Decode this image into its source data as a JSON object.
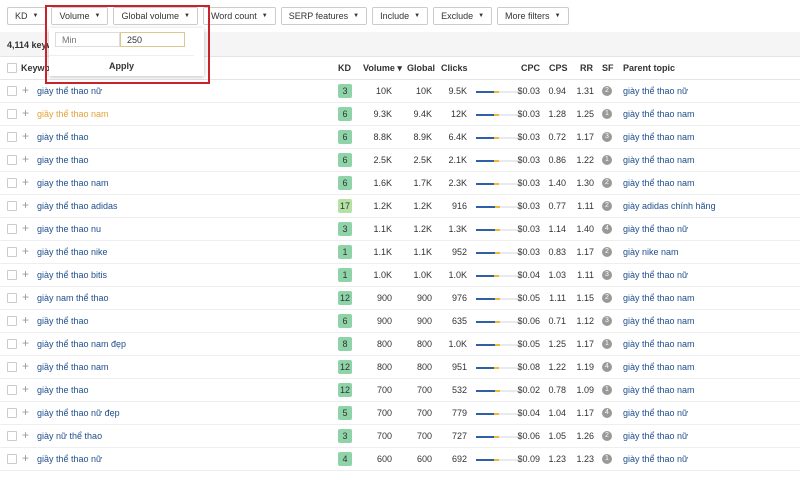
{
  "filters": [
    "KD",
    "Volume",
    "Global volume",
    "Word count",
    "SERP features",
    "Include",
    "Exclude",
    "More filters"
  ],
  "count": "4,114 keywords",
  "popup": {
    "min_placeholder": "Min",
    "value": "250",
    "apply": "Apply"
  },
  "columns": {
    "keyword": "Keyword",
    "kd": "KD",
    "volume": "Volume ▾",
    "global": "Global",
    "clicks": "Clicks",
    "cpc": "CPC",
    "cps": "CPS",
    "rr": "RR",
    "sf": "SF",
    "parent": "Parent topic"
  },
  "colors": {
    "highlight": "#c8222a",
    "link": "#1f4e8c",
    "hover": "#e4a23a",
    "kd_green": "#8fd3a8",
    "kd_light": "#b5e2a4"
  },
  "rows": [
    {
      "kw": "giày thể thao nữ",
      "kd": "3",
      "vol": "10K",
      "global": "10K",
      "clicks": "9.5K",
      "paid": 0.1,
      "cpc": "$0.03",
      "cps": "0.94",
      "rr": "1.31",
      "sf": "2",
      "parent": "giày thể thao nữ"
    },
    {
      "kw": "giầy thể thao nam",
      "kd": "6",
      "vol": "9.3K",
      "global": "9.4K",
      "clicks": "12K",
      "paid": 0.1,
      "cpc": "$0.03",
      "cps": "1.28",
      "rr": "1.25",
      "sf": "1",
      "parent": "giày thể thao nam",
      "hover": true
    },
    {
      "kw": "giày thể thao",
      "kd": "6",
      "vol": "8.8K",
      "global": "8.9K",
      "clicks": "6.4K",
      "paid": 0.1,
      "cpc": "$0.03",
      "cps": "0.72",
      "rr": "1.17",
      "sf": "3",
      "parent": "giày thể thao nam"
    },
    {
      "kw": "giay the thao",
      "kd": "6",
      "vol": "2.5K",
      "global": "2.5K",
      "clicks": "2.1K",
      "paid": 0.1,
      "cpc": "$0.03",
      "cps": "0.86",
      "rr": "1.22",
      "sf": "1",
      "parent": "giày thể thao nam"
    },
    {
      "kw": "giay the thao nam",
      "kd": "6",
      "vol": "1.6K",
      "global": "1.7K",
      "clicks": "2.3K",
      "paid": 0.1,
      "cpc": "$0.03",
      "cps": "1.40",
      "rr": "1.30",
      "sf": "2",
      "parent": "giày thể thao nam"
    },
    {
      "kw": "giày thể thao adidas",
      "kd": "17",
      "vol": "1.2K",
      "global": "1.2K",
      "clicks": "916",
      "paid": 0.05,
      "cpc": "$0.03",
      "cps": "0.77",
      "rr": "1.11",
      "sf": "2",
      "parent": "giày adidas chính hãng"
    },
    {
      "kw": "giay the thao nu",
      "kd": "3",
      "vol": "1.1K",
      "global": "1.2K",
      "clicks": "1.3K",
      "paid": 0.05,
      "cpc": "$0.03",
      "cps": "1.14",
      "rr": "1.40",
      "sf": "4",
      "parent": "giày thể thao nữ"
    },
    {
      "kw": "giày thể thao nike",
      "kd": "1",
      "vol": "1.1K",
      "global": "1.1K",
      "clicks": "952",
      "paid": 0.05,
      "cpc": "$0.03",
      "cps": "0.83",
      "rr": "1.17",
      "sf": "2",
      "parent": "giày nike nam"
    },
    {
      "kw": "giày thể thao bitis",
      "kd": "1",
      "vol": "1.0K",
      "global": "1.0K",
      "clicks": "1.0K",
      "paid": 0.1,
      "cpc": "$0.04",
      "cps": "1.03",
      "rr": "1.11",
      "sf": "3",
      "parent": "giày thể thao nữ"
    },
    {
      "kw": "giày nam thể thao",
      "kd": "12",
      "vol": "900",
      "global": "900",
      "clicks": "976",
      "paid": 0.05,
      "cpc": "$0.05",
      "cps": "1.11",
      "rr": "1.15",
      "sf": "2",
      "parent": "giày thể thao nam"
    },
    {
      "kw": "giầy thể thao",
      "kd": "6",
      "vol": "900",
      "global": "900",
      "clicks": "635",
      "paid": 0.05,
      "cpc": "$0.06",
      "cps": "0.71",
      "rr": "1.12",
      "sf": "3",
      "parent": "giày thể thao nam"
    },
    {
      "kw": "giày thể thao nam đẹp",
      "kd": "8",
      "vol": "800",
      "global": "800",
      "clicks": "1.0K",
      "paid": 0.05,
      "cpc": "$0.05",
      "cps": "1.25",
      "rr": "1.17",
      "sf": "1",
      "parent": "giày thể thao nam"
    },
    {
      "kw": "giầy thể thao nam",
      "kd": "12",
      "vol": "800",
      "global": "800",
      "clicks": "951",
      "paid": 0.1,
      "cpc": "$0.08",
      "cps": "1.22",
      "rr": "1.19",
      "sf": "4",
      "parent": "giày thể thao nam"
    },
    {
      "kw": "giày the thao",
      "kd": "12",
      "vol": "700",
      "global": "700",
      "clicks": "532",
      "paid": 0.05,
      "cpc": "$0.02",
      "cps": "0.78",
      "rr": "1.09",
      "sf": "1",
      "parent": "giày thể thao nam"
    },
    {
      "kw": "giày thể thao nữ đẹp",
      "kd": "5",
      "vol": "700",
      "global": "700",
      "clicks": "779",
      "paid": 0.1,
      "cpc": "$0.04",
      "cps": "1.04",
      "rr": "1.17",
      "sf": "4",
      "parent": "giày thể thao nữ"
    },
    {
      "kw": "giày nữ thể thao",
      "kd": "3",
      "vol": "700",
      "global": "700",
      "clicks": "727",
      "paid": 0.1,
      "cpc": "$0.06",
      "cps": "1.05",
      "rr": "1.26",
      "sf": "2",
      "parent": "giày thể thao nữ"
    },
    {
      "kw": "giầy thể thao nữ",
      "kd": "4",
      "vol": "600",
      "global": "600",
      "clicks": "692",
      "paid": 0.1,
      "cpc": "$0.09",
      "cps": "1.23",
      "rr": "1.23",
      "sf": "1",
      "parent": "giày thể thao nữ"
    }
  ]
}
